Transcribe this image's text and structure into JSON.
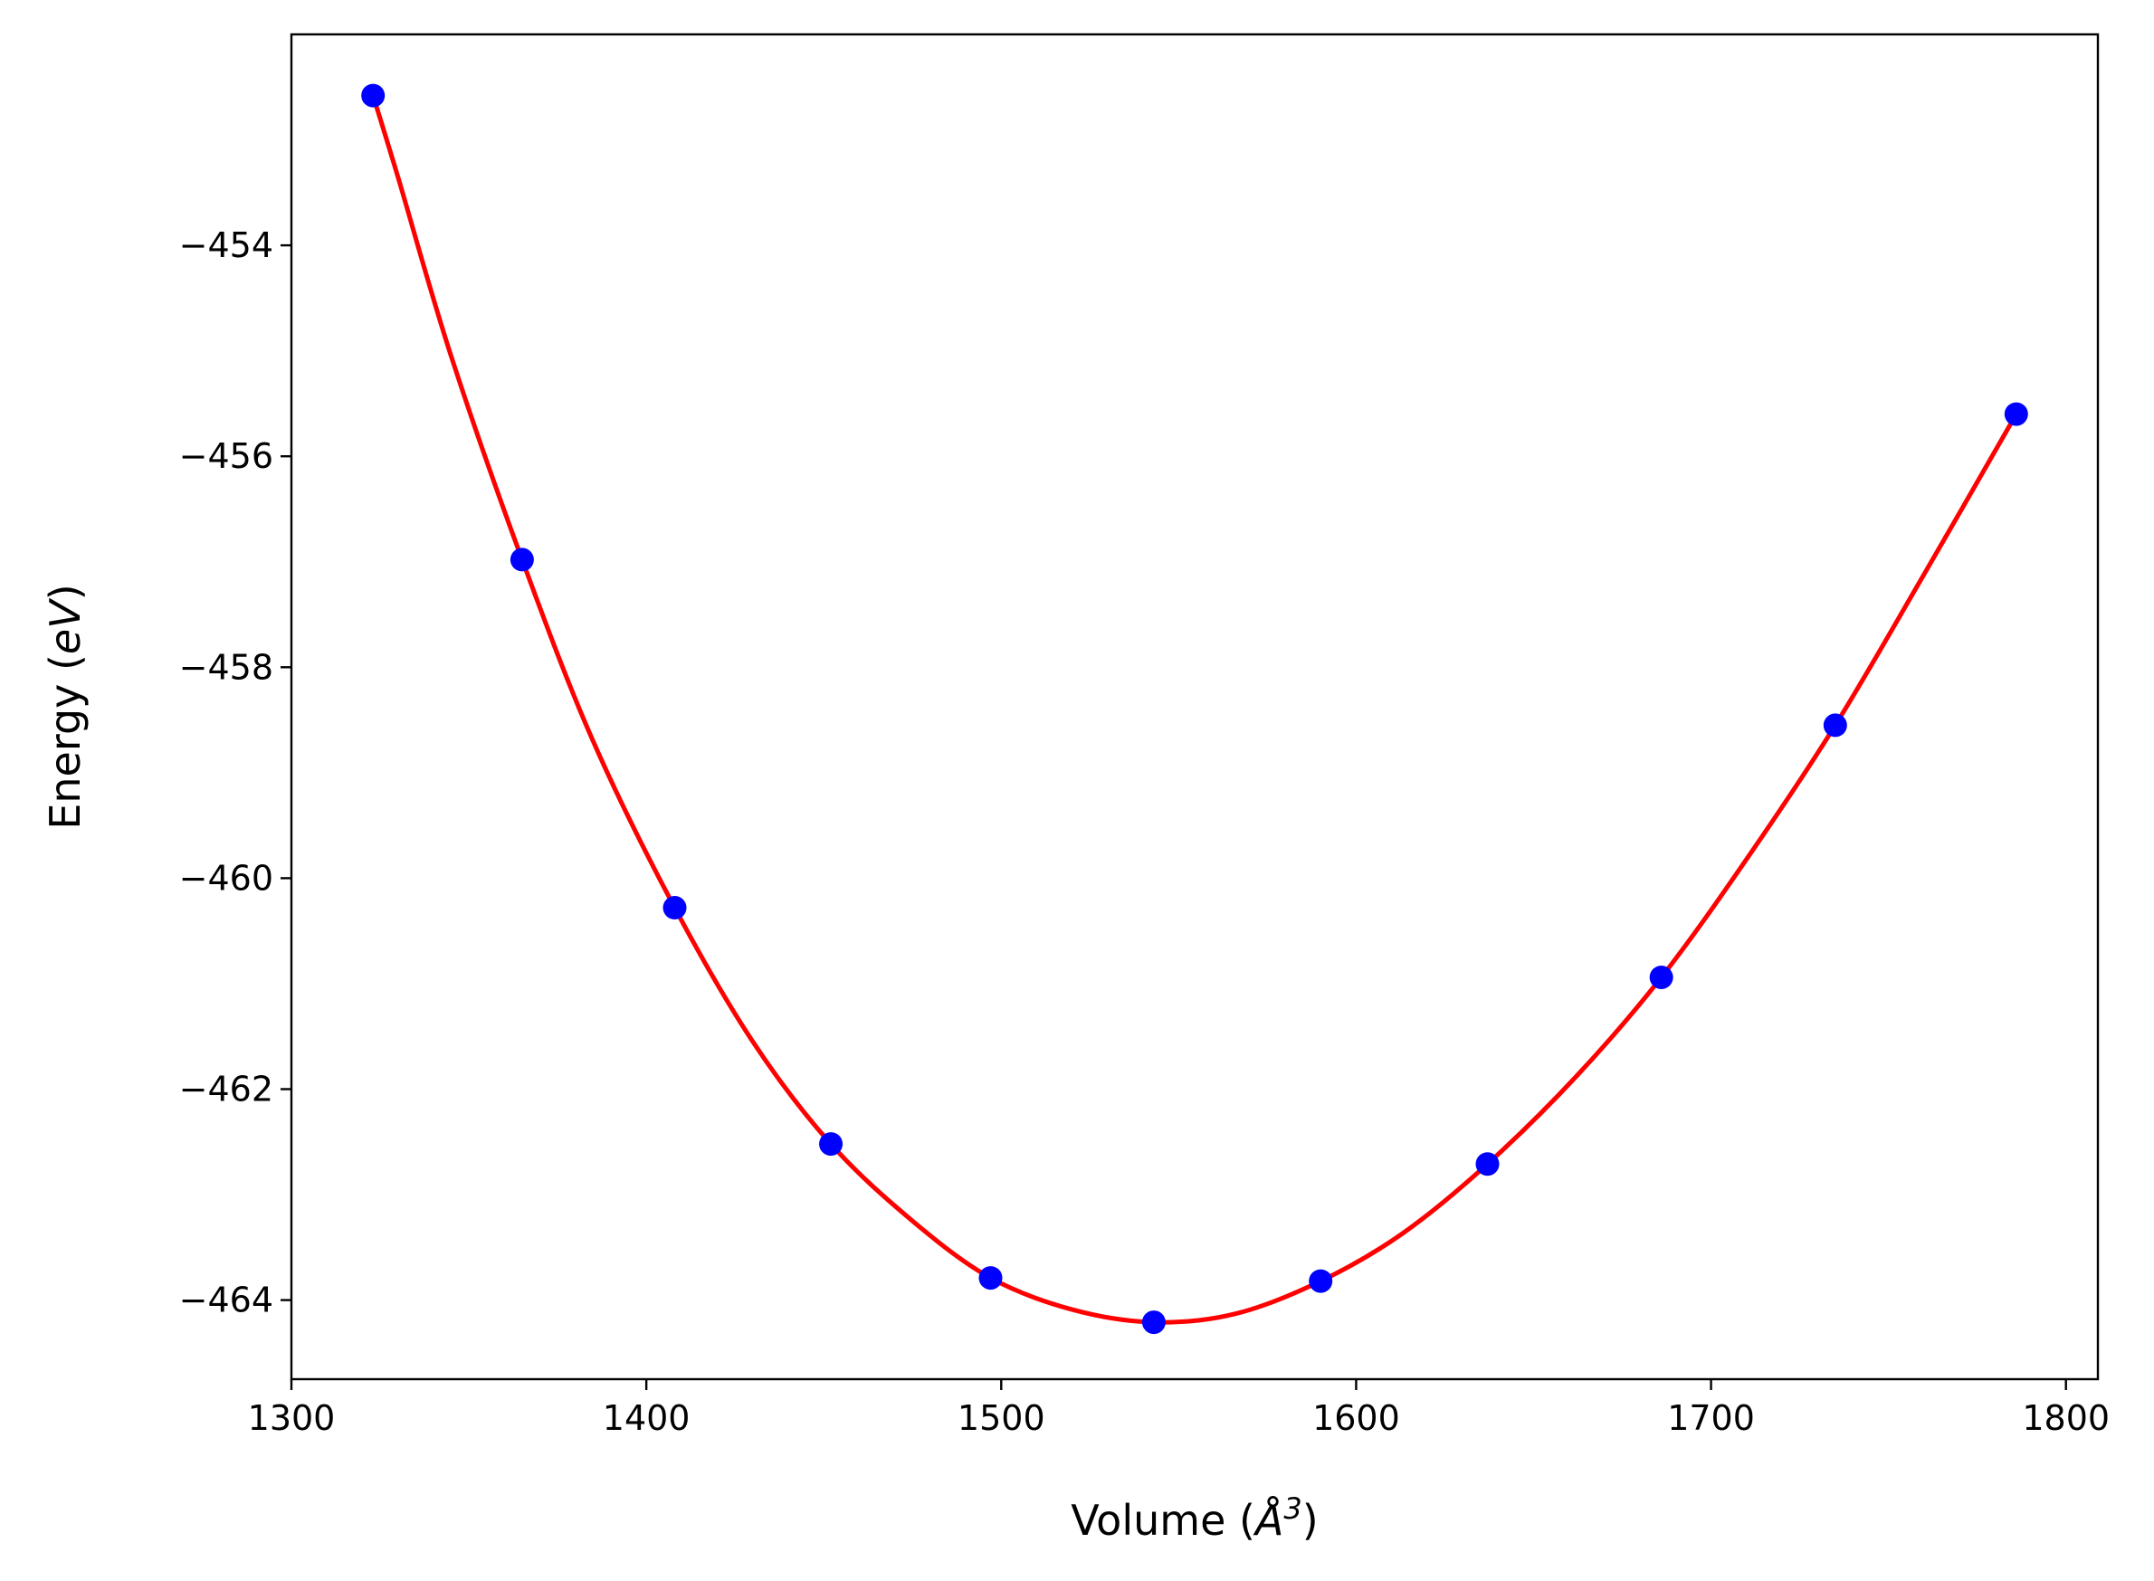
{
  "chart_data": {
    "type": "scatter",
    "title": "",
    "xlabel_main": "Volume (",
    "xlabel_unit": "Å",
    "xlabel_exp": "3",
    "xlabel_close": ")",
    "ylabel_main": "Energy (",
    "ylabel_unit": "eV",
    "ylabel_close": ")",
    "xlim": [
      1300,
      1809
    ],
    "ylim": [
      -464.75,
      -452.0
    ],
    "xticks": [
      1300,
      1400,
      1500,
      1600,
      1700,
      1800
    ],
    "yticks": [
      -454,
      -456,
      -458,
      -460,
      -462,
      -464
    ],
    "xtick_labels": [
      "1300",
      "1400",
      "1500",
      "1600",
      "1700",
      "1800"
    ],
    "ytick_labels": [
      "−454",
      "−456",
      "−458",
      "−460",
      "−462",
      "−464"
    ],
    "grid": false,
    "legend": "none",
    "series": [
      {
        "type": "scatter",
        "color": "#0000ff",
        "x": [
          1323,
          1365,
          1408,
          1452,
          1497,
          1543,
          1590,
          1637,
          1686,
          1735,
          1786
        ],
        "y": [
          -452.58,
          -456.98,
          -460.28,
          -462.52,
          -463.79,
          -464.21,
          -463.82,
          -462.71,
          -460.94,
          -458.55,
          -455.6
        ]
      },
      {
        "type": "line",
        "color": "#ff0000",
        "x": [
          1323,
          1330,
          1345,
          1365,
          1385,
          1408,
          1430,
          1452,
          1475,
          1497,
          1520,
          1543,
          1566,
          1590,
          1613,
          1637,
          1662,
          1686,
          1710,
          1735,
          1760,
          1786
        ],
        "y": [
          -452.58,
          -453.35,
          -455.05,
          -456.98,
          -458.7,
          -460.28,
          -461.55,
          -462.52,
          -463.25,
          -463.79,
          -464.09,
          -464.21,
          -464.13,
          -463.82,
          -463.37,
          -462.71,
          -461.88,
          -460.94,
          -459.82,
          -458.55,
          -457.12,
          -455.6
        ]
      }
    ]
  }
}
